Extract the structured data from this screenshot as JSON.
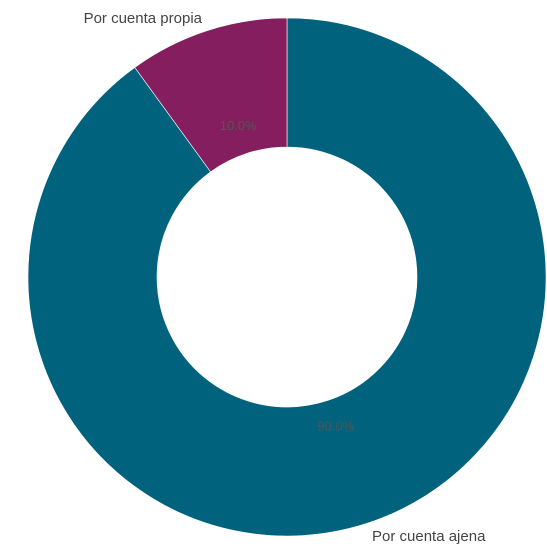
{
  "chart_data": {
    "type": "pie",
    "donut": true,
    "categories": [
      "Por cuenta ajena",
      "Por cuenta propia"
    ],
    "values": [
      90.0,
      10.0
    ],
    "value_labels": [
      "90.0%",
      "10.0%"
    ],
    "colors": [
      "#00627d",
      "#851e5e"
    ],
    "start_angle_deg": 0,
    "direction": "clockwise",
    "legend": "none",
    "grid": false
  }
}
